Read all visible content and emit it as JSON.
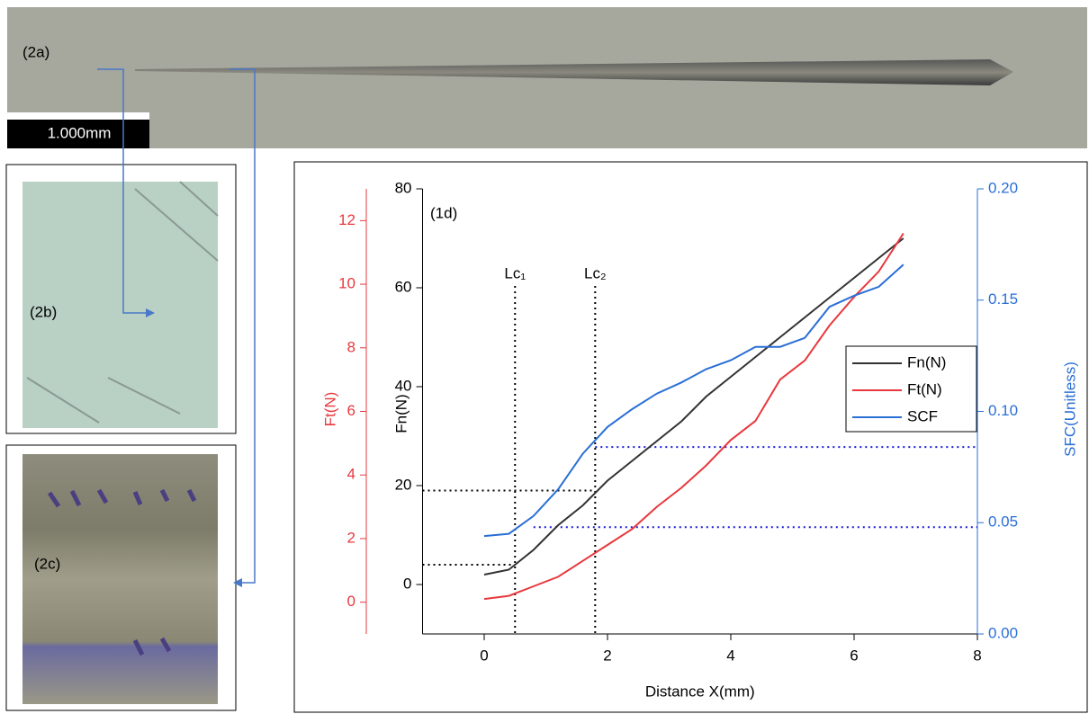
{
  "panels": {
    "a": {
      "label": "(2a)",
      "scale_bar": "1.000mm"
    },
    "b": {
      "label": "(2b)"
    },
    "c": {
      "label": "(2c)"
    }
  },
  "chart_data": {
    "type": "line",
    "annotation": "(1d)",
    "x_label": "Distance X(mm)",
    "y_label": "Fn(N)",
    "y3_label": "Ft(N)",
    "y2_label": "SFC(Unitless)",
    "x": [
      0,
      0.4,
      0.8,
      1.2,
      1.6,
      2.0,
      2.4,
      2.8,
      3.2,
      3.6,
      4.0,
      4.4,
      4.8,
      5.2,
      5.6,
      6.0,
      6.4,
      6.8
    ],
    "series": [
      {
        "name": "Fn(N)",
        "color": "#333333",
        "axis": "y",
        "values": [
          2,
          3,
          7,
          12,
          16,
          21,
          25,
          29,
          33,
          38,
          42,
          46,
          50,
          54,
          58,
          62,
          66,
          70
        ]
      },
      {
        "name": "Ft(N)",
        "color": "#e8383d",
        "axis": "y3",
        "values": [
          0.1,
          0.2,
          0.5,
          0.8,
          1.3,
          1.8,
          2.3,
          3.0,
          3.6,
          4.3,
          5.1,
          5.7,
          7.0,
          7.6,
          8.7,
          9.6,
          10.4,
          11.6
        ]
      },
      {
        "name": "SCF",
        "color": "#2a6fd6",
        "axis": "y2",
        "values": [
          0.044,
          0.045,
          0.053,
          0.065,
          0.081,
          0.093,
          0.101,
          0.108,
          0.113,
          0.119,
          0.123,
          0.129,
          0.129,
          0.133,
          0.147,
          0.152,
          0.156,
          0.166
        ]
      }
    ],
    "xlim": [
      -1,
      8
    ],
    "xticks": [
      0,
      2,
      4,
      6,
      8
    ],
    "ylim": [
      -10,
      80
    ],
    "yticks": [
      0,
      20,
      40,
      60,
      80
    ],
    "y3lim": [
      -1,
      13
    ],
    "y3ticks": [
      0,
      2,
      4,
      6,
      8,
      10,
      12
    ],
    "y2lim": [
      0,
      0.2
    ],
    "y2ticks": [
      {
        "value": 0,
        "label": "0.00"
      },
      0.05,
      {
        "value": 0.1,
        "label": "0.10"
      },
      0.15,
      {
        "value": 0.2,
        "label": "0.20"
      }
    ],
    "vlines": [
      {
        "x": 0.5,
        "label": "Lc₁"
      },
      {
        "x": 1.8,
        "label": "Lc₂"
      }
    ],
    "hlines": [
      {
        "axis": "y",
        "value": 19,
        "from": -1,
        "to": 1.8,
        "color": "#000000"
      },
      {
        "axis": "y",
        "value": 4,
        "from": -1,
        "to": 0.5,
        "color": "#000000"
      },
      {
        "axis": "y2",
        "value": 0.084,
        "from": 1.8,
        "to": 8,
        "color": "#1a1adb"
      },
      {
        "axis": "y2",
        "value": 0.048,
        "from": 0.8,
        "to": 8,
        "color": "#1a1adb"
      }
    ],
    "legend": "right"
  }
}
